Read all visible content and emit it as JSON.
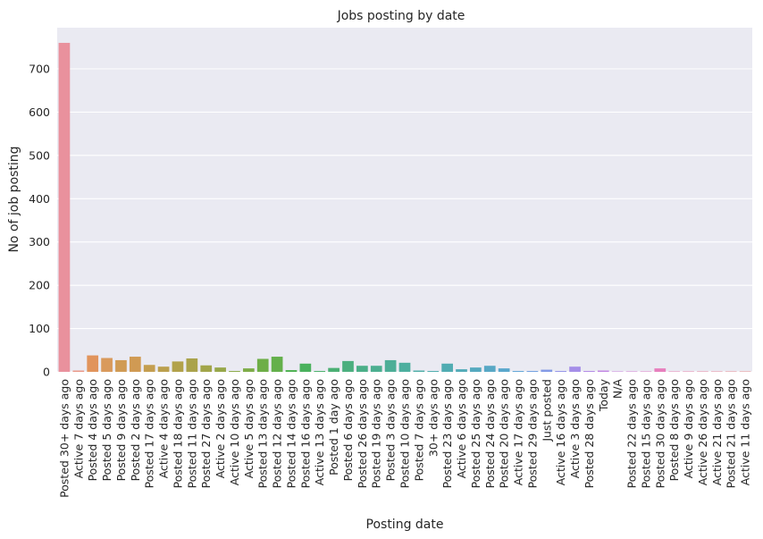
{
  "chart_data": {
    "type": "bar",
    "title": "Jobs posting by date",
    "xlabel": "Posting date",
    "ylabel": "No of job posting",
    "ylim": [
      0,
      795
    ],
    "yticks": [
      0,
      100,
      200,
      300,
      400,
      500,
      600,
      700
    ],
    "grid": true,
    "background": "#eaeaf2",
    "categories": [
      "Posted 30+ days ago",
      "Active 7 days ago",
      "Posted 4 days ago",
      "Posted 5 days ago",
      "Posted 9 days ago",
      "Posted 2 days ago",
      "Posted 17 days ago",
      "Active 4 days ago",
      "Posted 18 days ago",
      "Posted 11 days ago",
      "Posted 27 days ago",
      "Active 2 days ago",
      "Active 10 days ago",
      "Active 5 days ago",
      "Posted 13 days ago",
      "Posted 12 days ago",
      "Posted 14 days ago",
      "Posted 16 days ago",
      "Active 13 days ago",
      "Posted 1 day ago",
      "Posted 6 days ago",
      "Posted 26 days ago",
      "Posted 19 days ago",
      "Posted 3 days ago",
      "Posted 10 days ago",
      "Posted 7 days ago",
      "30+ days ago",
      "Posted 23 days ago",
      "Active 6 days ago",
      "Posted 25 days ago",
      "Posted 24 days ago",
      "Posted 20 days ago",
      "Active 17 days ago",
      "Posted 29 days ago",
      "Just posted",
      "Active 16 days ago",
      "Active 3 days ago",
      "Posted 28 days ago",
      "Today",
      "N/A",
      "Posted 22 days ago",
      "Posted 15 days ago",
      "Posted 30 days ago",
      "Posted 8 days ago",
      "Active 9 days ago",
      "Active 26 days ago",
      "Active 21 days ago",
      "Posted 21 days ago",
      "Active 11 days ago"
    ],
    "values": [
      760,
      3,
      38,
      32,
      27,
      35,
      16,
      12,
      24,
      31,
      15,
      10,
      2,
      8,
      30,
      35,
      4,
      19,
      2,
      9,
      25,
      14,
      14,
      27,
      21,
      3,
      2,
      19,
      6,
      10,
      14,
      8,
      2,
      2,
      5,
      2,
      12,
      2,
      3,
      1,
      1,
      1,
      8,
      1,
      1,
      1,
      1,
      1,
      1
    ],
    "colors": [
      "#e9919d",
      "#e99787",
      "#e1945c",
      "#d99a5c",
      "#d09b55",
      "#d09a53",
      "#c49e50",
      "#bba04e",
      "#b2a24b",
      "#aaa34b",
      "#a2a54a",
      "#97a74a",
      "#8cab48",
      "#7eac48",
      "#6eae47",
      "#64b04b",
      "#4cb150",
      "#4ab15d",
      "#4ab06a",
      "#4bb074",
      "#4caf7f",
      "#4baf88",
      "#4caf90",
      "#4dae97",
      "#4daf9f",
      "#4eada6",
      "#4eacac",
      "#51acb2",
      "#53abb8",
      "#55a9bf",
      "#58a8c5",
      "#5aa7cc",
      "#62a5d6",
      "#70a0e0",
      "#839ae6",
      "#9394e8",
      "#a58ee8",
      "#b38ae6",
      "#c186e2",
      "#cb82dc",
      "#d67fd4",
      "#e07dca",
      "#e77fbd",
      "#e982b3",
      "#e985aa",
      "#e988a2",
      "#e98b9a",
      "#e98d93",
      "#e98f8e"
    ]
  }
}
